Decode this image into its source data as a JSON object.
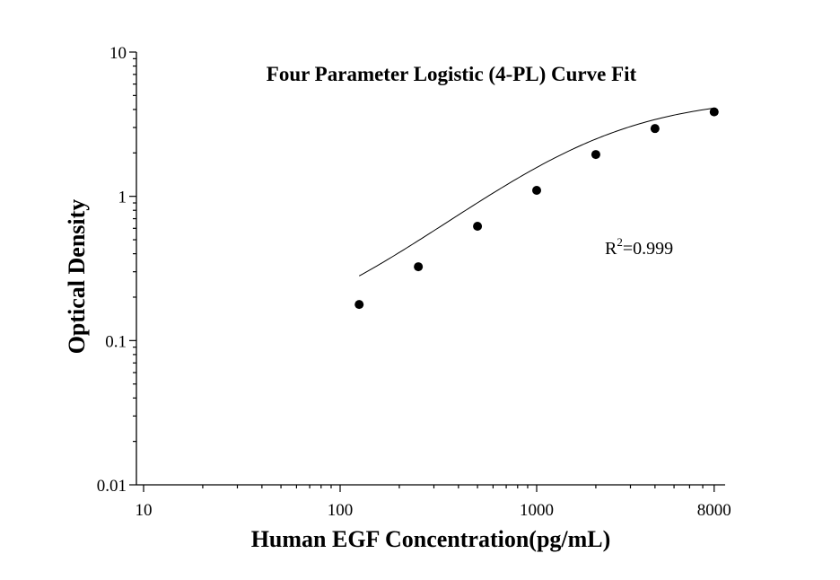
{
  "chart_data": {
    "type": "scatter",
    "title": "Four Parameter Logistic (4-PL) Curve Fit",
    "xlabel": "Human EGF Concentration(pg/mL)",
    "ylabel": "Optical Density",
    "x_scale": "log",
    "y_scale": "log",
    "xlim": [
      7.5,
      8000
    ],
    "ylim": [
      0.01,
      10
    ],
    "x_ticks": [
      10,
      100,
      1000,
      8000
    ],
    "x_tick_labels": [
      "10",
      "100",
      "1000",
      "8000"
    ],
    "y_ticks": [
      0.01,
      0.1,
      1,
      10
    ],
    "y_tick_labels": [
      "0.01",
      "0.1",
      "1",
      "10"
    ],
    "grid": false,
    "legend": "none",
    "points": [
      {
        "x": 125,
        "y": 0.178
      },
      {
        "x": 250,
        "y": 0.325
      },
      {
        "x": 500,
        "y": 0.62
      },
      {
        "x": 1000,
        "y": 1.1
      },
      {
        "x": 2000,
        "y": 1.95
      },
      {
        "x": 4000,
        "y": 2.95
      },
      {
        "x": 8000,
        "y": 3.85
      }
    ],
    "fit": {
      "model": "4-PL",
      "a": 0.09,
      "b": 1.15,
      "c": 2000,
      "d": 4.9
    },
    "annotation": {
      "base": "R",
      "superscript": "2",
      "text": "=0.999"
    }
  }
}
